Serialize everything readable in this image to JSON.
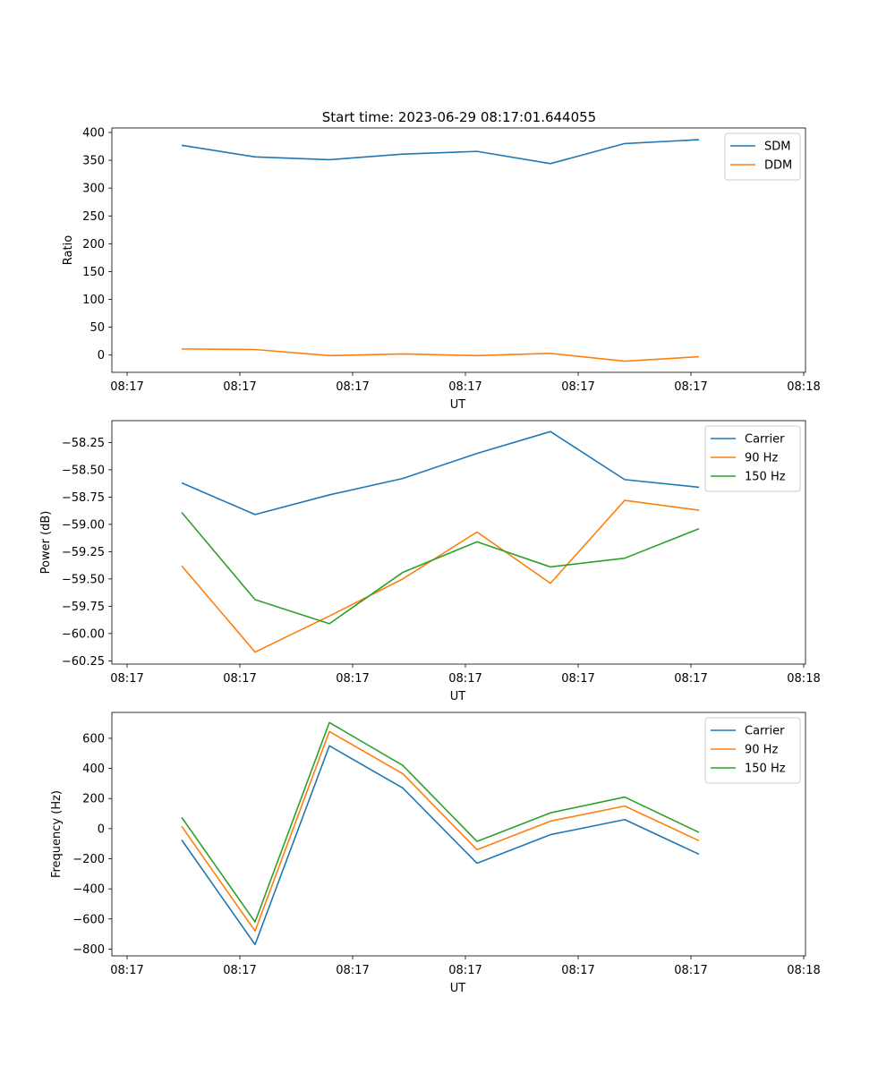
{
  "figure": {
    "title": "Start time: 2023-06-29 08:17:01.644055"
  },
  "chart_data": [
    {
      "type": "line",
      "title": "Start time: 2023-06-29 08:17:01.644055",
      "xlabel": "UT",
      "ylabel": "Ratio",
      "x_ticks": [
        "08:17",
        "08:17",
        "08:17",
        "08:17",
        "08:17",
        "08:17",
        "08:18"
      ],
      "y_ticks": [
        0,
        50,
        100,
        150,
        200,
        250,
        300,
        350,
        400
      ],
      "ylim": [
        -31,
        408
      ],
      "legend_position": "upper right",
      "series": [
        {
          "name": "SDM",
          "color": "#1f77b4",
          "values": [
            377,
            356,
            351,
            361,
            366,
            344,
            380,
            387
          ]
        },
        {
          "name": "DDM",
          "color": "#ff7f0e",
          "values": [
            11,
            10,
            -1,
            2,
            -1,
            3,
            -11,
            -3
          ]
        }
      ]
    },
    {
      "type": "line",
      "title": "",
      "xlabel": "UT",
      "ylabel": "Power (dB)",
      "x_ticks": [
        "08:17",
        "08:17",
        "08:17",
        "08:17",
        "08:17",
        "08:17",
        "08:18"
      ],
      "y_ticks": [
        -58.25,
        -58.5,
        -58.75,
        -59.0,
        -59.25,
        -59.5,
        -59.75,
        -60.0,
        -60.25
      ],
      "y_tick_labels": [
        "−58.25",
        "−58.50",
        "−58.75",
        "−59.00",
        "−59.25",
        "−59.50",
        "−59.75",
        "−60.00",
        "−60.25"
      ],
      "ylim": [
        -60.28,
        -58.05
      ],
      "legend_position": "upper right",
      "series": [
        {
          "name": "Carrier",
          "color": "#1f77b4",
          "values": [
            -58.62,
            -58.91,
            -58.73,
            -58.58,
            -58.35,
            -58.15,
            -58.59,
            -58.66
          ]
        },
        {
          "name": "90 Hz",
          "color": "#ff7f0e",
          "values": [
            -59.38,
            -60.17,
            -59.84,
            -59.5,
            -59.07,
            -59.54,
            -58.78,
            -58.87
          ]
        },
        {
          "name": "150 Hz",
          "color": "#2ca02c",
          "values": [
            -58.89,
            -59.69,
            -59.91,
            -59.44,
            -59.16,
            -59.39,
            -59.31,
            -59.04
          ]
        }
      ]
    },
    {
      "type": "line",
      "title": "",
      "xlabel": "UT",
      "ylabel": "Frequency (Hz)",
      "x_ticks": [
        "08:17",
        "08:17",
        "08:17",
        "08:17",
        "08:17",
        "08:17",
        "08:18"
      ],
      "y_ticks": [
        600,
        400,
        200,
        0,
        -200,
        -400,
        -600,
        -800
      ],
      "y_tick_labels": [
        "600",
        "400",
        "200",
        "0",
        "−200",
        "−400",
        "−600",
        "−800"
      ],
      "ylim": [
        -845,
        772
      ],
      "legend_position": "upper right",
      "series": [
        {
          "name": "Carrier",
          "color": "#1f77b4",
          "values": [
            -75,
            -770,
            550,
            270,
            -230,
            -40,
            60,
            -170
          ]
        },
        {
          "name": "90 Hz",
          "color": "#ff7f0e",
          "values": [
            15,
            -680,
            645,
            365,
            -140,
            50,
            150,
            -80
          ]
        },
        {
          "name": "150 Hz",
          "color": "#2ca02c",
          "values": [
            75,
            -620,
            705,
            420,
            -85,
            105,
            210,
            -25
          ]
        }
      ]
    }
  ]
}
